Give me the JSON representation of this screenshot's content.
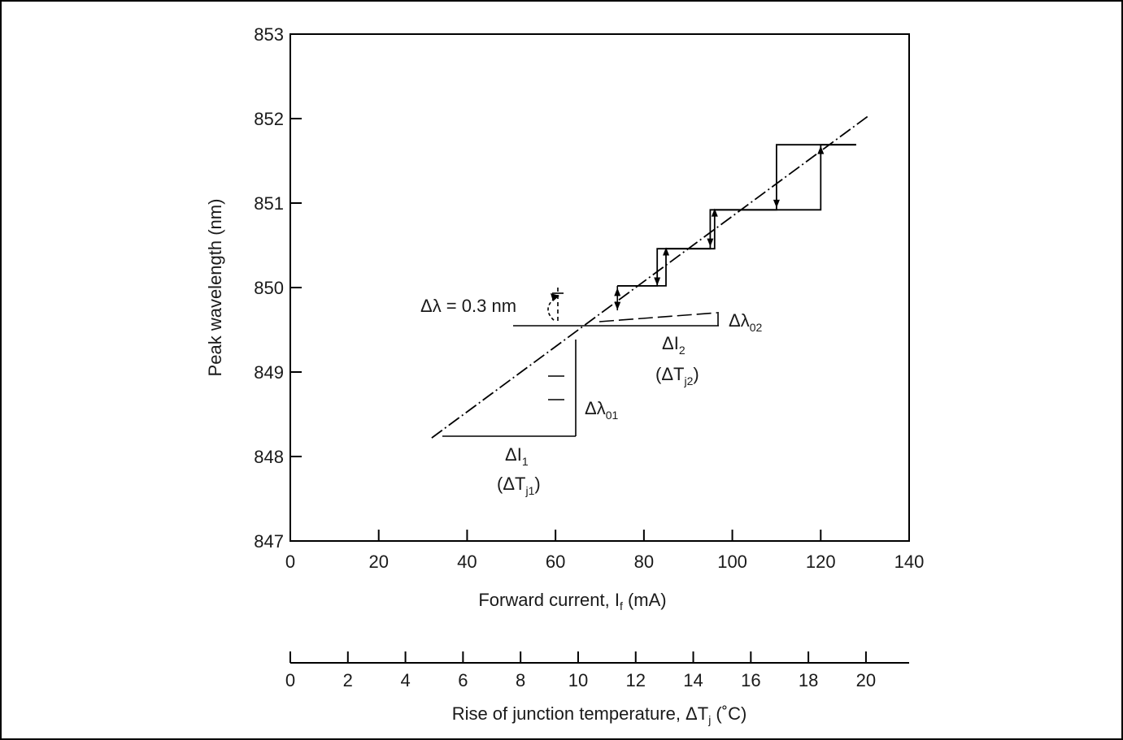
{
  "chart_data": {
    "type": "line",
    "title": "",
    "xlabel": "Forward current, I",
    "xlabel_sub": "f",
    "xlabel_suffix": " (mA)",
    "ylabel": "Peak wavelength (nm)",
    "xlim": [
      0,
      140
    ],
    "ylim": [
      847,
      853
    ],
    "x_ticks": [
      0,
      20,
      40,
      60,
      80,
      100,
      120,
      140
    ],
    "y_ticks": [
      847,
      848,
      849,
      850,
      851,
      852,
      853
    ],
    "grid": false,
    "secondary_axis": {
      "label": "Rise of junction temperature, ΔT",
      "label_sub": "j",
      "label_suffix": " (˚C)",
      "ticks": [
        0,
        2,
        4,
        6,
        8,
        10,
        12,
        14,
        16,
        18,
        20
      ],
      "range": [
        0,
        21.5
      ]
    },
    "series": [
      {
        "style": "dash-dot",
        "x": [
          32,
          131
        ],
        "y": [
          848.22,
          852.04
        ]
      },
      {
        "style": "step",
        "x": [
          74,
          85,
          85,
          96,
          96,
          120,
          120,
          128
        ],
        "y": [
          850.02,
          850.02,
          850.46,
          850.46,
          850.92,
          850.92,
          851.69,
          851.69
        ]
      },
      {
        "style": "step",
        "x": [
          74,
          83,
          83,
          95,
          95,
          110,
          110,
          128
        ],
        "y": [
          850.02,
          850.02,
          850.46,
          850.46,
          850.92,
          850.92,
          851.69,
          851.69
        ]
      }
    ],
    "annotations": {
      "delta_lambda_label": "Δλ = 0.3 nm",
      "delta_lambda_02": "Δλ",
      "delta_lambda_02_sub": "02",
      "delta_lambda_01": "Δλ",
      "delta_lambda_01_sub": "01",
      "delta_I2": "ΔI",
      "delta_I2_sub": "2",
      "delta_Tj2_open": "(ΔT",
      "delta_Tj2_sub": "j2",
      "delta_Tj2_close": ")",
      "delta_I1": "ΔI",
      "delta_I1_sub": "1",
      "delta_Tj1_open": "(ΔT",
      "delta_Tj1_sub": "j1",
      "delta_Tj1_close": ")"
    }
  }
}
